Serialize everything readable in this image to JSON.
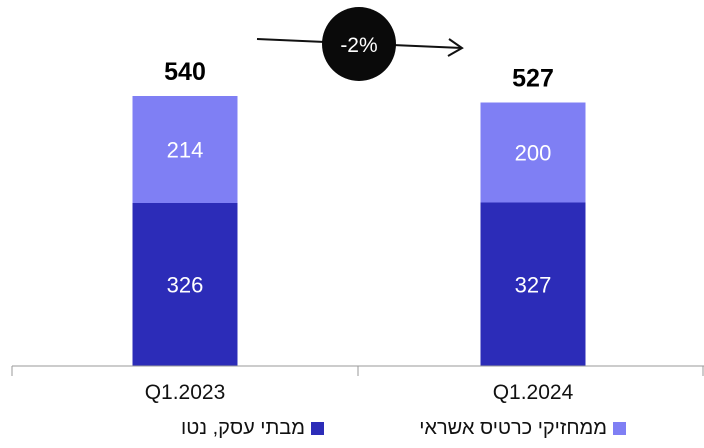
{
  "chart_data": {
    "type": "bar",
    "stacked": true,
    "categories": [
      "Q1.2023",
      "Q1.2024"
    ],
    "series": [
      {
        "name": "מבתי עסק, נטו",
        "values": [
          326,
          327
        ],
        "color": "#2c2cb8"
      },
      {
        "name": "ממחזיקי כרטיס אשראי",
        "values": [
          214,
          200
        ],
        "color": "#7f7ff4"
      }
    ],
    "totals": [
      "540",
      "527"
    ],
    "change_label": "-2%",
    "ylim": [
      0,
      560
    ],
    "grid": false,
    "legend_position": "bottom"
  }
}
